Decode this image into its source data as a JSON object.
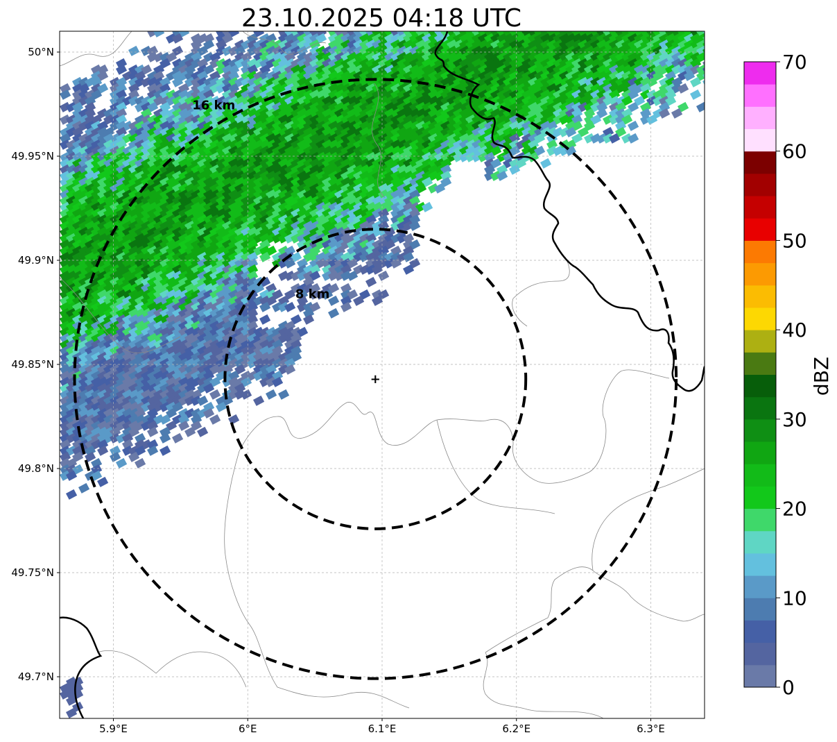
{
  "title": "23.10.2025 04:18 UTC",
  "map": {
    "lon_range": [
      5.86,
      6.34
    ],
    "lat_range": [
      49.68,
      50.01
    ],
    "radar_site": {
      "lon": 6.095,
      "lat": 49.843
    },
    "x_ticks": [
      {
        "value": 5.9,
        "label": "5.9°E"
      },
      {
        "value": 6.0,
        "label": "6°E"
      },
      {
        "value": 6.1,
        "label": "6.1°E"
      },
      {
        "value": 6.2,
        "label": "6.2°E"
      },
      {
        "value": 6.3,
        "label": "6.3°E"
      }
    ],
    "y_ticks": [
      {
        "value": 50.0,
        "label": "50°N"
      },
      {
        "value": 49.95,
        "label": "49.95°N"
      },
      {
        "value": 49.9,
        "label": "49.9°N"
      },
      {
        "value": 49.85,
        "label": "49.85°N"
      },
      {
        "value": 49.8,
        "label": "49.8°N"
      },
      {
        "value": 49.75,
        "label": "49.75°N"
      },
      {
        "value": 49.7,
        "label": "49.7°N"
      }
    ],
    "range_rings": [
      {
        "radius_km": 8,
        "label": "8 km"
      },
      {
        "radius_km": 16,
        "label": "16 km"
      }
    ]
  },
  "colorbar": {
    "label": "dBZ",
    "min": 0,
    "max": 70,
    "step": 2.5,
    "tick_labels": [
      "0",
      "10",
      "20",
      "30",
      "40",
      "50",
      "60",
      "70"
    ],
    "colors": [
      "#6a7aa8",
      "#5465a0",
      "#4560a6",
      "#4d7cb0",
      "#5a9ac8",
      "#63c0de",
      "#5fd6c4",
      "#3fd86a",
      "#12c81a",
      "#12bb18",
      "#10a612",
      "#0f8f14",
      "#0a7510",
      "#075e0a",
      "#4a7a12",
      "#adb012",
      "#fdd802",
      "#fbbc02",
      "#fc9a02",
      "#fc7a02",
      "#e80000",
      "#c50000",
      "#a20000",
      "#7c0000",
      "#ffe0ff",
      "#ffb0ff",
      "#ff70ff",
      "#ee2cee"
    ]
  }
}
